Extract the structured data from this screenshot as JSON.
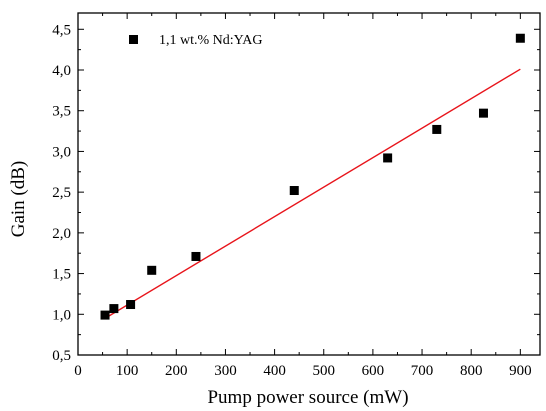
{
  "chart_data": {
    "type": "scatter",
    "title": "",
    "xlabel": "Pump power source (mW)",
    "ylabel": "Gain (dB)",
    "xlim": [
      0,
      940
    ],
    "ylim": [
      0.5,
      4.7
    ],
    "x_ticks": [
      0,
      100,
      200,
      300,
      400,
      500,
      600,
      700,
      800,
      900
    ],
    "y_ticks": [
      0.5,
      1.0,
      1.5,
      2.0,
      2.5,
      3.0,
      3.5,
      4.0,
      4.5
    ],
    "x_tick_labels": [
      "0",
      "100",
      "200",
      "300",
      "400",
      "500",
      "600",
      "700",
      "800",
      "900"
    ],
    "y_tick_labels": [
      "0,5",
      "1,0",
      "1,5",
      "2,0",
      "2,5",
      "3,0",
      "3,5",
      "4,0",
      "4,5"
    ],
    "grid": false,
    "legend_position": "top-left",
    "series": [
      {
        "name": "1,1 wt.% Nd:YAG",
        "marker": "square",
        "color": "#000000",
        "x": [
          55,
          73,
          107,
          150,
          240,
          440,
          630,
          730,
          825,
          900
        ],
        "y": [
          0.99,
          1.07,
          1.12,
          1.54,
          1.71,
          2.52,
          2.92,
          3.27,
          3.47,
          4.39
        ]
      }
    ],
    "fit_line": {
      "color": "#e8141b",
      "x": [
        55,
        900
      ],
      "y": [
        0.95,
        4.01
      ]
    }
  }
}
